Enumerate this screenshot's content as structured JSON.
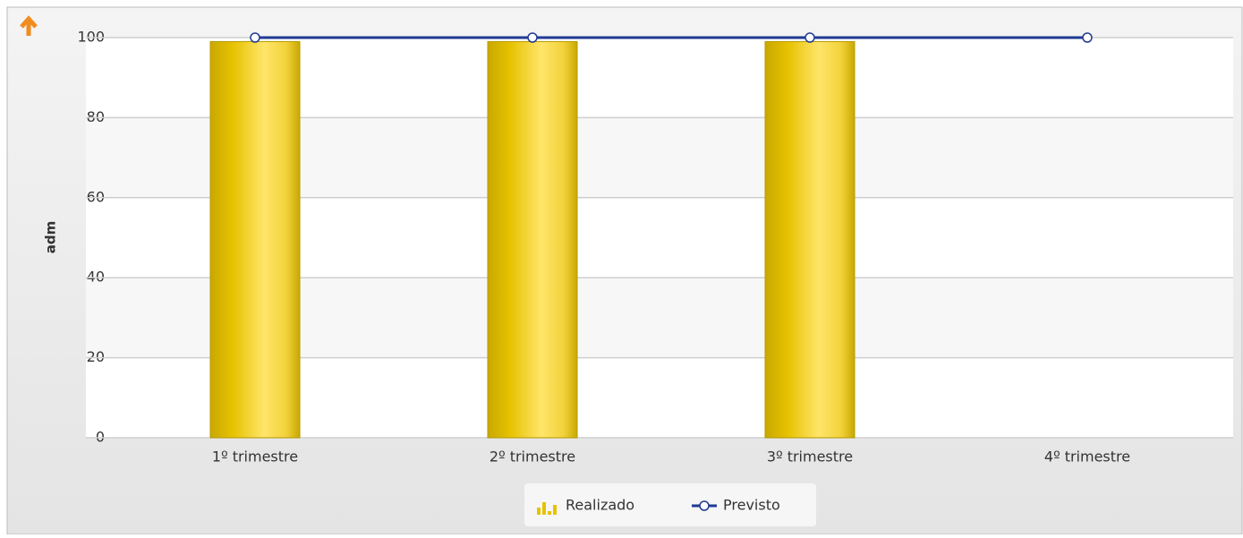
{
  "chart_data": {
    "type": "bar",
    "categories": [
      "1º trimestre",
      "2º trimestre",
      "3º trimestre",
      "4º trimestre"
    ],
    "series": [
      {
        "name": "Realizado",
        "type": "bar",
        "color": "#e6c200",
        "values": [
          99,
          99,
          99,
          null
        ]
      },
      {
        "name": "Previsto",
        "type": "line",
        "color": "#1f3a93",
        "values": [
          100,
          100,
          100,
          100
        ]
      }
    ],
    "ylabel": "adm",
    "ylim": [
      0,
      100
    ],
    "yticks": [
      0,
      20,
      40,
      60,
      80,
      100
    ],
    "grid": true,
    "legend": "bottom"
  }
}
